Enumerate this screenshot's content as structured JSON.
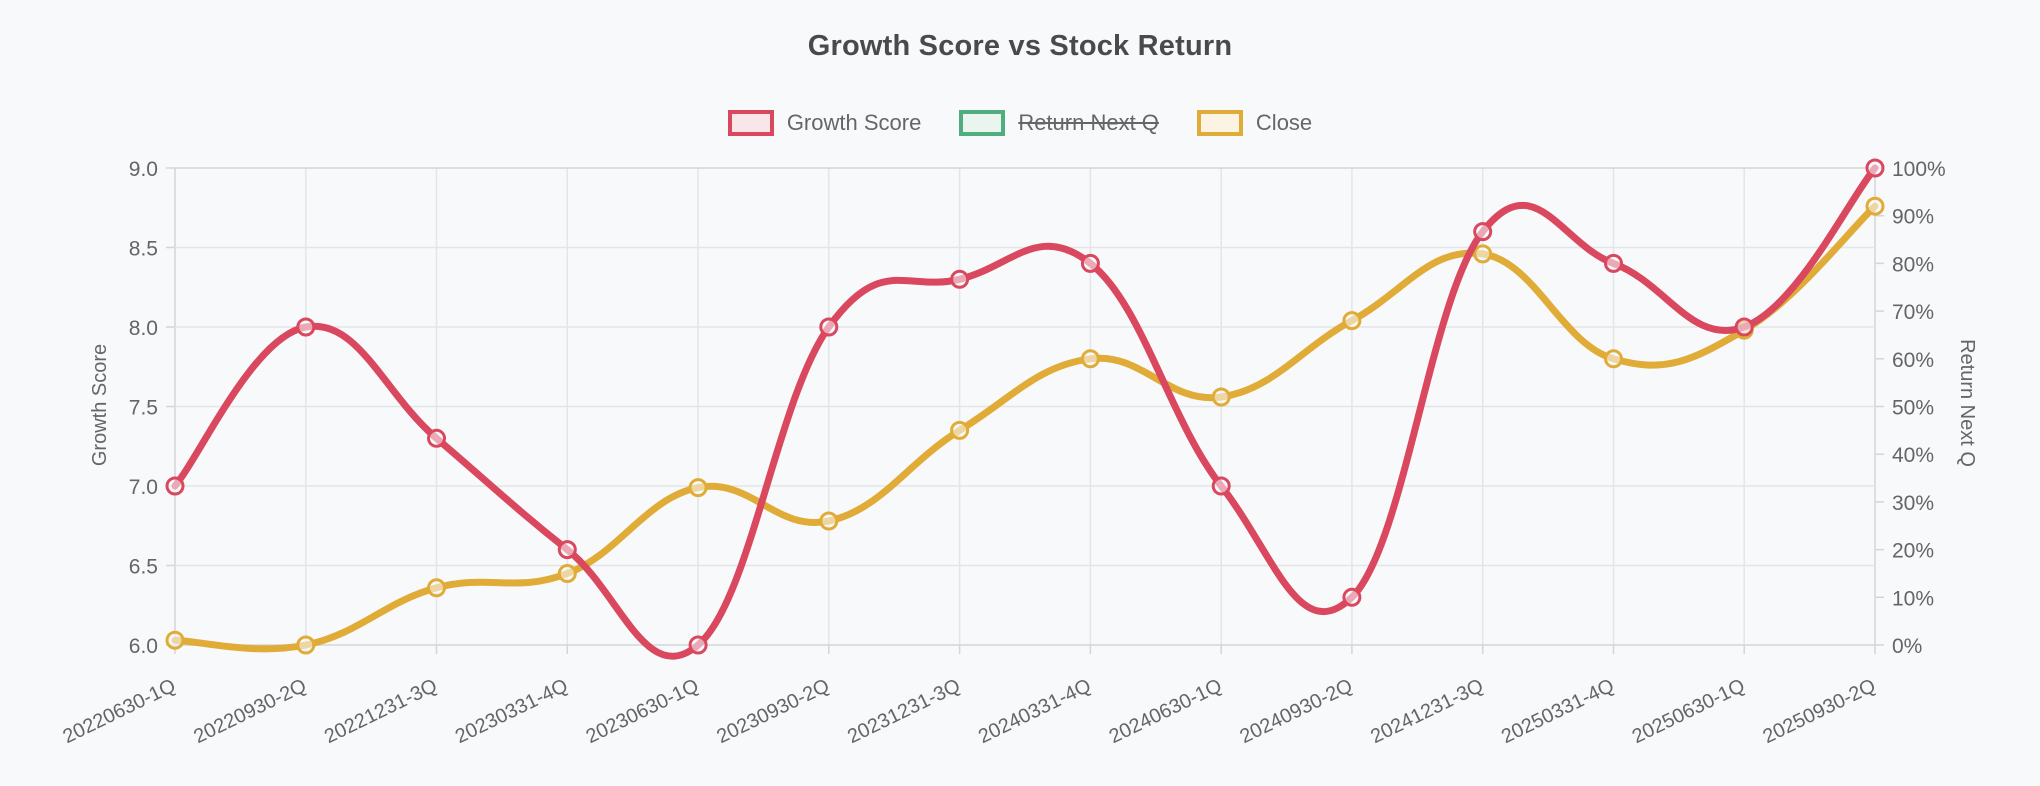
{
  "page": {
    "background": "#F8F9FB",
    "title_color": "#4A4A4A",
    "text_color": "#666666",
    "grid_color": "#E4E5E8",
    "border_color": "#D3D5D9"
  },
  "chart_data": {
    "type": "line",
    "title": "Growth Score vs Stock Return",
    "legend_position": "top",
    "grid": true,
    "categories": [
      "20220630-1Q",
      "20220930-2Q",
      "20221231-3Q",
      "20230331-4Q",
      "20230630-1Q",
      "20230930-2Q",
      "20231231-3Q",
      "20240331-4Q",
      "20240630-1Q",
      "20240930-2Q",
      "20241231-3Q",
      "20250331-4Q",
      "20250630-1Q",
      "20250930-2Q"
    ],
    "series": [
      {
        "name": "Growth Score",
        "axis": "left",
        "color": "#D9485E",
        "fill_tint": "#F9E6E9",
        "hidden": false,
        "values": [
          7.0,
          8.0,
          7.3,
          6.6,
          6.0,
          8.0,
          8.3,
          8.4,
          7.0,
          6.3,
          8.6,
          8.4,
          8.0,
          9.0
        ]
      },
      {
        "name": "Return Next Q",
        "axis": "right",
        "color": "#4FAE7F",
        "fill_tint": "#EAF5EF",
        "hidden": true,
        "values": []
      },
      {
        "name": "Close",
        "axis": "right",
        "color": "#E0AC37",
        "fill_tint": "#FBF4E2",
        "hidden": false,
        "values": [
          1,
          0,
          12,
          15,
          33,
          26,
          45,
          60,
          52,
          68,
          82,
          60,
          66,
          92
        ]
      }
    ],
    "y_left": {
      "title": "Growth Score",
      "min": 6.0,
      "max": 9.0,
      "ticks": [
        "9.0",
        "8.5",
        "8.0",
        "7.5",
        "7.0",
        "6.5",
        "6.0"
      ]
    },
    "y_right": {
      "title": "Return Next Q",
      "min": 0,
      "max": 100,
      "ticks": [
        "100%",
        "90%",
        "80%",
        "70%",
        "60%",
        "50%",
        "40%",
        "30%",
        "20%",
        "10%",
        "0%"
      ]
    }
  }
}
